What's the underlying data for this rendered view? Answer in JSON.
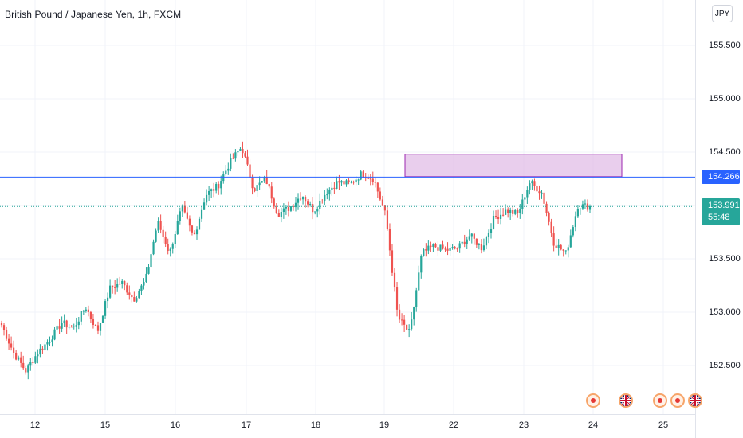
{
  "header": {
    "title": "British Pound / Japanese Yen, 1h, FXCM",
    "currency_button": "JPY"
  },
  "price_axis": {
    "ticks": [
      "155.500",
      "155.000",
      "154.500",
      "153.500",
      "153.000",
      "152.500"
    ]
  },
  "time_axis": {
    "ticks": [
      "12",
      "15",
      "16",
      "17",
      "18",
      "19",
      "22",
      "23",
      "24",
      "25"
    ]
  },
  "markers": {
    "level_price": "154.266",
    "last_price": "153.991",
    "countdown": "55:48",
    "level_color": "#2962ff",
    "last_color": "#26a69a"
  },
  "zone": {
    "color": "#e1bee7",
    "border": "#9c27b0",
    "price_low": 154.27,
    "price_high": 154.48
  },
  "events": [
    {
      "type": "dot",
      "icon": "economic-event-icon"
    },
    {
      "type": "flag",
      "icon": "uk-flag-icon"
    },
    {
      "type": "dot",
      "icon": "economic-event-icon"
    },
    {
      "type": "dot",
      "icon": "economic-event-icon"
    },
    {
      "type": "flag",
      "icon": "uk-flag-icon"
    }
  ],
  "chart_data": {
    "type": "candlestick",
    "title": "British Pound / Japanese Yen, 1h, FXCM",
    "ylim": [
      152.1,
      155.9
    ],
    "up_color": "#26a69a",
    "down_color": "#ef5350",
    "keypoints": [
      [
        "12",
        152.88
      ],
      [
        "",
        152.62
      ],
      [
        "",
        152.45
      ],
      [
        "",
        152.62
      ],
      [
        "",
        152.74
      ],
      [
        "",
        152.9
      ],
      [
        "15",
        152.85
      ],
      [
        "",
        153.05
      ],
      [
        "",
        152.82
      ],
      [
        "",
        153.22
      ],
      [
        "",
        153.28
      ],
      [
        "",
        153.12
      ],
      [
        "",
        153.3
      ],
      [
        "16",
        153.85
      ],
      [
        "",
        153.55
      ],
      [
        "",
        153.98
      ],
      [
        "",
        153.7
      ],
      [
        "",
        154.1
      ],
      [
        "",
        154.18
      ],
      [
        "17",
        154.4
      ],
      [
        "",
        154.55
      ],
      [
        "",
        154.15
      ],
      [
        "",
        154.25
      ],
      [
        "",
        153.92
      ],
      [
        "18",
        153.98
      ],
      [
        "",
        154.1
      ],
      [
        "",
        153.95
      ],
      [
        "",
        154.12
      ],
      [
        "",
        154.22
      ],
      [
        "19",
        154.2
      ],
      [
        "",
        154.3
      ],
      [
        "",
        154.25
      ],
      [
        "",
        153.9
      ],
      [
        "",
        152.95
      ],
      [
        "",
        152.8
      ],
      [
        "",
        153.55
      ],
      [
        "",
        153.62
      ],
      [
        "",
        153.58
      ],
      [
        "22",
        153.6
      ],
      [
        "",
        153.72
      ],
      [
        "",
        153.6
      ],
      [
        "",
        153.88
      ],
      [
        "",
        153.95
      ],
      [
        "23",
        153.92
      ],
      [
        "",
        154.22
      ],
      [
        "",
        154.12
      ],
      [
        "",
        153.65
      ],
      [
        "",
        153.55
      ],
      [
        "24",
        154.0
      ],
      [
        "",
        153.99
      ]
    ]
  }
}
